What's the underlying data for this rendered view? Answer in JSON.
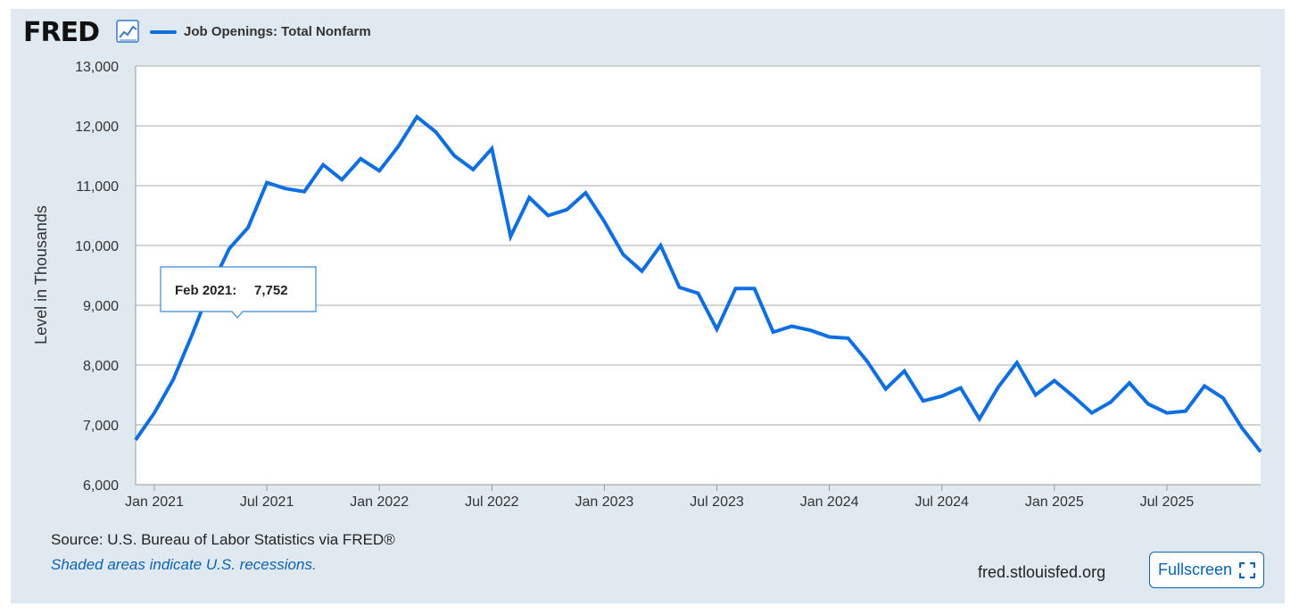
{
  "brand": {
    "logo_text": "FRED",
    "logo_icon": "trend-chart-icon"
  },
  "colors": {
    "line": "#0f6fe0",
    "frame_bg": "#e1e9f0",
    "grid": "#bbbbbb",
    "link": "#0a63b5"
  },
  "footer": {
    "source": "Source: U.S. Bureau of Labor Statistics via FRED®",
    "recession_note": "Shaded areas indicate U.S. recessions.",
    "site": "fred.stlouisfed.org",
    "fullscreen_label": "Fullscreen",
    "fullscreen_icon": "expand-icon"
  },
  "tooltip": {
    "label": "Feb 2021:",
    "value": "7,752"
  },
  "chart_data": {
    "type": "line",
    "title": "",
    "xlabel": "",
    "ylabel": "Level in Thousands",
    "ylim": [
      6000,
      13000
    ],
    "yticks": [
      6000,
      7000,
      8000,
      9000,
      10000,
      11000,
      12000,
      13000
    ],
    "ytick_labels": [
      "6,000",
      "7,000",
      "8,000",
      "9,000",
      "10,000",
      "11,000",
      "12,000",
      "13,000"
    ],
    "xlim": [
      "2020-12",
      "2025-12"
    ],
    "xtick_labels": [
      {
        "label": "Jan 2021",
        "date": "2021-01"
      },
      {
        "label": "Jul 2021",
        "date": "2021-07"
      },
      {
        "label": "Jan 2022",
        "date": "2022-01"
      },
      {
        "label": "Jul 2022",
        "date": "2022-07"
      },
      {
        "label": "Jan 2023",
        "date": "2023-01"
      },
      {
        "label": "Jul 2023",
        "date": "2023-07"
      },
      {
        "label": "Jan 2024",
        "date": "2024-01"
      },
      {
        "label": "Jul 2024",
        "date": "2024-07"
      },
      {
        "label": "Jan 2025",
        "date": "2025-01"
      },
      {
        "label": "Jul 2025",
        "date": "2025-07"
      }
    ],
    "grid": true,
    "legend": "top-left",
    "series": [
      {
        "name": "Job Openings: Total Nonfarm",
        "x": [
          "2020-12",
          "2021-01",
          "2021-02",
          "2021-03",
          "2021-04",
          "2021-05",
          "2021-06",
          "2021-07",
          "2021-08",
          "2021-09",
          "2021-10",
          "2021-11",
          "2021-12",
          "2022-01",
          "2022-02",
          "2022-03",
          "2022-04",
          "2022-05",
          "2022-06",
          "2022-07",
          "2022-08",
          "2022-09",
          "2022-10",
          "2022-11",
          "2022-12",
          "2023-01",
          "2023-02",
          "2023-03",
          "2023-04",
          "2023-05",
          "2023-06",
          "2023-07",
          "2023-08",
          "2023-09",
          "2023-10",
          "2023-11",
          "2023-12",
          "2024-01",
          "2024-02",
          "2024-03",
          "2024-04",
          "2024-05",
          "2024-06",
          "2024-07",
          "2024-08",
          "2024-09",
          "2024-10",
          "2024-11",
          "2024-12",
          "2025-01",
          "2025-02",
          "2025-03",
          "2025-04",
          "2025-05",
          "2025-06",
          "2025-07",
          "2025-08",
          "2025-09",
          "2025-10",
          "2025-11",
          "2025-12"
        ],
        "y": [
          6750,
          7200,
          7752,
          8500,
          9300,
          9950,
          10300,
          11050,
          10950,
          10900,
          11350,
          11100,
          11450,
          11250,
          11650,
          12150,
          11900,
          11500,
          11270,
          11620,
          10150,
          10800,
          10500,
          10600,
          10880,
          10400,
          9850,
          9570,
          10000,
          9300,
          9200,
          8600,
          9280,
          9280,
          8550,
          8650,
          8580,
          8470,
          8450,
          8070,
          7600,
          7900,
          7400,
          7480,
          7620,
          7100,
          7630,
          8040,
          7500,
          7740,
          7480,
          7200,
          7380,
          7700,
          7350,
          7200,
          7230,
          7650,
          7450,
          6950,
          6550
        ]
      }
    ]
  }
}
